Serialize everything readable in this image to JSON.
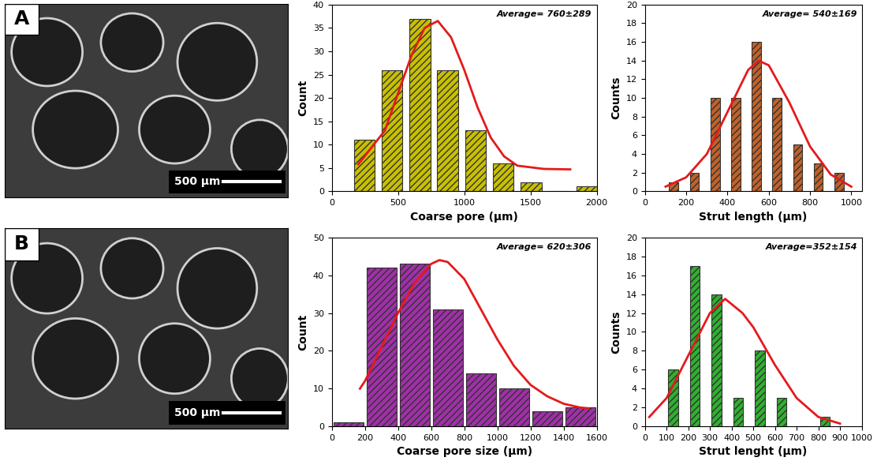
{
  "images": [
    {
      "label": "A",
      "scale_bar": "500 μm"
    },
    {
      "label": "B",
      "scale_bar": "500 μm"
    }
  ],
  "chart_data": [
    {
      "type": "histogram",
      "xlabel": "Coarse pore (µm)",
      "ylabel": "Count",
      "annotation": "Average= 760±289",
      "bins": [
        140,
        350,
        560,
        770,
        980,
        1190,
        1400,
        1610,
        1820,
        2030
      ],
      "values": [
        11,
        26,
        37,
        26,
        13,
        6,
        2,
        0,
        1
      ],
      "color": "#c8c000",
      "xlim": [
        0,
        2000
      ],
      "ylim": [
        0,
        40
      ],
      "xticks": [
        0,
        500,
        1000,
        1500,
        2000
      ],
      "yticks": [
        0,
        5,
        10,
        15,
        20,
        25,
        30,
        35,
        40
      ],
      "fit": {
        "type": "line",
        "color": "#e41a1c",
        "x": [
          200,
          400,
          500,
          600,
          700,
          800,
          900,
          1000,
          1100,
          1200,
          1300,
          1400,
          1600,
          1800
        ],
        "values": [
          5.8,
          13,
          21,
          29,
          35,
          36.5,
          33,
          26,
          18,
          11.5,
          7.5,
          5.5,
          4.8,
          4.7
        ]
      }
    },
    {
      "type": "histogram",
      "xlabel": "Strut length (µm)",
      "ylabel": "Counts",
      "annotation": "Average= 540±169",
      "bins": [
        90,
        190,
        290,
        390,
        490,
        590,
        690,
        790,
        890,
        990
      ],
      "values": [
        1,
        2,
        10,
        10,
        16,
        10,
        5,
        3,
        2
      ],
      "color": "#c0622a",
      "xlim": [
        0,
        1050
      ],
      "ylim": [
        0,
        20
      ],
      "xticks": [
        0,
        200,
        400,
        600,
        800,
        1000
      ],
      "yticks": [
        0,
        2,
        4,
        6,
        8,
        10,
        12,
        14,
        16,
        18,
        20
      ],
      "fit": {
        "type": "line",
        "color": "#e41a1c",
        "x": [
          100,
          200,
          300,
          400,
          500,
          550,
          600,
          700,
          800,
          900,
          1000
        ],
        "values": [
          0.5,
          1.5,
          4,
          8.5,
          13,
          14,
          13.5,
          9.5,
          4.8,
          1.8,
          0.5
        ]
      }
    },
    {
      "type": "histogram",
      "xlabel": "Coarse pore size (µm)",
      "ylabel": "Count",
      "annotation": "Average= 620±306",
      "bins": [
        0,
        200,
        400,
        600,
        800,
        1000,
        1200,
        1400,
        1600
      ],
      "values": [
        1,
        42,
        43,
        31,
        14,
        10,
        4,
        5
      ],
      "color": "#a030a8",
      "xlim": [
        0,
        1600
      ],
      "ylim": [
        0,
        50
      ],
      "xticks": [
        0,
        200,
        400,
        600,
        800,
        1000,
        1200,
        1400,
        1600
      ],
      "yticks": [
        0,
        10,
        20,
        30,
        40,
        50
      ],
      "fit": {
        "type": "line",
        "color": "#e41a1c",
        "x": [
          170,
          200,
          300,
          400,
          500,
          600,
          650,
          700,
          800,
          900,
          1000,
          1100,
          1200,
          1300,
          1400,
          1500,
          1550
        ],
        "values": [
          10,
          12,
          21,
          30,
          38,
          43,
          44,
          43.5,
          39,
          31,
          23,
          16,
          11,
          8,
          6,
          5,
          4.8
        ]
      }
    },
    {
      "type": "histogram",
      "xlabel": "Strut lenght (µm)",
      "ylabel": "Counts",
      "annotation": "Average=352±154",
      "bins": [
        80,
        180,
        280,
        380,
        480,
        580,
        680,
        780,
        880
      ],
      "values": [
        6,
        17,
        14,
        3,
        8,
        3,
        0,
        1
      ],
      "color": "#30b030",
      "xlim": [
        0,
        1000
      ],
      "ylim": [
        0,
        20
      ],
      "xticks": [
        0,
        100,
        200,
        300,
        400,
        500,
        600,
        700,
        800,
        900,
        1000
      ],
      "yticks": [
        0,
        2,
        4,
        6,
        8,
        10,
        12,
        14,
        16,
        18,
        20
      ],
      "fit": {
        "type": "line",
        "color": "#e41a1c",
        "x": [
          20,
          100,
          200,
          300,
          370,
          450,
          500,
          600,
          700,
          800,
          900
        ],
        "values": [
          1,
          3,
          7.5,
          12,
          13.5,
          12,
          10.5,
          6.5,
          3,
          1,
          0.3
        ]
      }
    }
  ]
}
